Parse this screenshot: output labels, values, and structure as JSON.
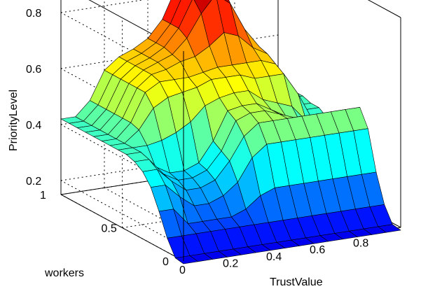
{
  "chart_data": {
    "type": "surface",
    "title": "",
    "xlabel": "TrustValue",
    "ylabel": "workers",
    "zlabel": "PriorityLevel",
    "xlim": [
      0,
      1
    ],
    "ylim": [
      0,
      1
    ],
    "zlim": [
      0.15,
      0.9
    ],
    "x_ticks": [
      "0",
      "0.2",
      "0.4",
      "0.6",
      "0.8"
    ],
    "y_ticks": [
      "0",
      "0.5",
      "1"
    ],
    "z_ticks": [
      "0.2",
      "0.4",
      "0.6",
      "0.8"
    ],
    "grid": true,
    "colormap": "jet",
    "x": [
      0,
      0.0667,
      0.1333,
      0.2,
      0.2667,
      0.3333,
      0.4,
      0.4667,
      0.5333,
      0.6,
      0.6667,
      0.7333,
      0.8,
      0.8667,
      0.9333,
      1
    ],
    "y": [
      0,
      0.0667,
      0.1333,
      0.2,
      0.2667,
      0.3333,
      0.4,
      0.4667,
      0.5333,
      0.6,
      0.6667,
      0.7333,
      0.8,
      0.8667,
      0.9333,
      1
    ],
    "z": [
      [
        0.14,
        0.14,
        0.14,
        0.14,
        0.14,
        0.14,
        0.14,
        0.14,
        0.14,
        0.14,
        0.14,
        0.14,
        0.14,
        0.14,
        0.14,
        0.14
      ],
      [
        0.145,
        0.145,
        0.145,
        0.145,
        0.145,
        0.145,
        0.145,
        0.145,
        0.145,
        0.145,
        0.145,
        0.145,
        0.145,
        0.145,
        0.145,
        0.145
      ],
      [
        0.2,
        0.2,
        0.2,
        0.2,
        0.2,
        0.2,
        0.2,
        0.2,
        0.2,
        0.2,
        0.2,
        0.2,
        0.2,
        0.2,
        0.2,
        0.2
      ],
      [
        0.28,
        0.28,
        0.22,
        0.22,
        0.22,
        0.22,
        0.24,
        0.28,
        0.3,
        0.3,
        0.3,
        0.3,
        0.3,
        0.3,
        0.3,
        0.3
      ],
      [
        0.35,
        0.35,
        0.3,
        0.26,
        0.26,
        0.28,
        0.32,
        0.4,
        0.44,
        0.44,
        0.44,
        0.44,
        0.44,
        0.44,
        0.44,
        0.44
      ],
      [
        0.39,
        0.39,
        0.34,
        0.3,
        0.3,
        0.32,
        0.38,
        0.46,
        0.5,
        0.5,
        0.5,
        0.5,
        0.5,
        0.5,
        0.5,
        0.5
      ],
      [
        0.41,
        0.41,
        0.35,
        0.32,
        0.32,
        0.34,
        0.4,
        0.5,
        0.52,
        0.52,
        0.5,
        0.48,
        0.46,
        0.42,
        0.36,
        0.36
      ],
      [
        0.42,
        0.42,
        0.36,
        0.33,
        0.33,
        0.35,
        0.42,
        0.52,
        0.53,
        0.53,
        0.5,
        0.47,
        0.44,
        0.38,
        0.3,
        0.3
      ],
      [
        0.42,
        0.42,
        0.42,
        0.43,
        0.45,
        0.48,
        0.53,
        0.55,
        0.56,
        0.56,
        0.52,
        0.5,
        0.48,
        0.42,
        0.33,
        0.33
      ],
      [
        0.42,
        0.42,
        0.46,
        0.53,
        0.56,
        0.57,
        0.58,
        0.6,
        0.6,
        0.6,
        0.58,
        0.58,
        0.58,
        0.5,
        0.4,
        0.4
      ],
      [
        0.42,
        0.42,
        0.47,
        0.57,
        0.6,
        0.6,
        0.6,
        0.61,
        0.62,
        0.62,
        0.62,
        0.62,
        0.6,
        0.52,
        0.42,
        0.42
      ],
      [
        0.42,
        0.42,
        0.47,
        0.57,
        0.61,
        0.62,
        0.64,
        0.65,
        0.68,
        0.72,
        0.7,
        0.65,
        0.62,
        0.53,
        0.42,
        0.42
      ],
      [
        0.42,
        0.42,
        0.47,
        0.57,
        0.61,
        0.63,
        0.65,
        0.7,
        0.78,
        0.84,
        0.8,
        0.7,
        0.63,
        0.54,
        0.43,
        0.43
      ],
      [
        0.42,
        0.42,
        0.47,
        0.57,
        0.61,
        0.63,
        0.66,
        0.72,
        0.82,
        0.9,
        0.85,
        0.72,
        0.63,
        0.54,
        0.43,
        0.43
      ],
      [
        0.42,
        0.42,
        0.47,
        0.57,
        0.61,
        0.63,
        0.66,
        0.72,
        0.83,
        0.9,
        0.86,
        0.72,
        0.63,
        0.54,
        0.43,
        0.43
      ],
      [
        0.42,
        0.42,
        0.47,
        0.57,
        0.61,
        0.63,
        0.66,
        0.72,
        0.83,
        0.9,
        0.86,
        0.72,
        0.63,
        0.54,
        0.43,
        0.43
      ]
    ]
  }
}
